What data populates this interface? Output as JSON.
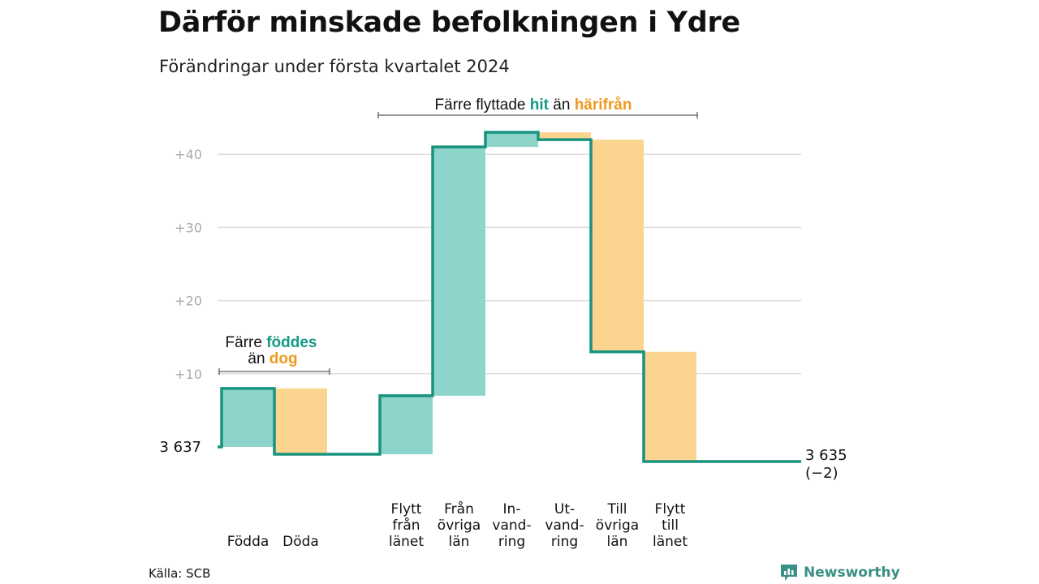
{
  "title": "Därför minskade befolkningen i Ydre",
  "subtitle": "Förändringar under första kvartalet 2024",
  "source": "Källa: SCB",
  "brand": "Newsworthy",
  "colors": {
    "inflow": "#8dd5cb",
    "outflow": "#fbd58f",
    "line": "#19937f",
    "hit_text": "#159a86",
    "away_text": "#ef9a1d",
    "grid": "#dddddd",
    "tick_text": "#aaaaaa"
  },
  "annotations": {
    "natural": {
      "line1_prefix": "Färre ",
      "line1_highlight": "föddes",
      "line2_prefix": "än ",
      "line2_highlight": "dog"
    },
    "migration": {
      "prefix": "Färre flyttade ",
      "highlight1": "hit",
      "middle": " än ",
      "highlight2": "härifrån"
    }
  },
  "chart_data": {
    "type": "waterfall",
    "title": "Därför minskade befolkningen i Ydre",
    "subtitle": "Förändringar under första kvartalet 2024",
    "start_label": "3  637",
    "start_value": 3637,
    "end_label_line1": "3 635",
    "end_label_line2": "(−2)",
    "end_value": 3635,
    "yticks": [
      "+10",
      "+20",
      "+30",
      "+40"
    ],
    "ytick_values": [
      10,
      20,
      30,
      40
    ],
    "grid": true,
    "steps": [
      {
        "category": [
          "Födda"
        ],
        "kind": "in",
        "value": 8
      },
      {
        "category": [
          "Döda"
        ],
        "kind": "out",
        "value": 9
      },
      {
        "category": [],
        "kind": "gap",
        "value": 0
      },
      {
        "category": [
          "Flytt",
          "från",
          "länet"
        ],
        "kind": "in",
        "value": 8
      },
      {
        "category": [
          "Från",
          "övriga",
          "län"
        ],
        "kind": "in",
        "value": 34
      },
      {
        "category": [
          "In-",
          "vand-",
          "ring"
        ],
        "kind": "in",
        "value": 2
      },
      {
        "category": [
          "Ut-",
          "vand-",
          "ring"
        ],
        "kind": "out",
        "value": 1
      },
      {
        "category": [
          "Till",
          "övriga",
          "län"
        ],
        "kind": "out",
        "value": 29
      },
      {
        "category": [
          "Flytt",
          "till",
          "länet"
        ],
        "kind": "out",
        "value": 15
      }
    ]
  }
}
